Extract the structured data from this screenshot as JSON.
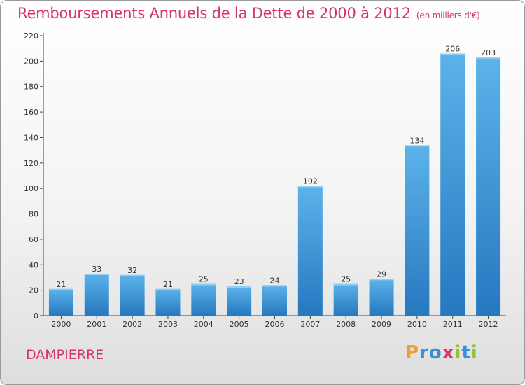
{
  "header": {
    "title": "Remboursements Annuels de la Dette de 2000 à 2012",
    "unit": "(en milliers d'€)"
  },
  "footer": {
    "town": "DAMPIERRE",
    "logo": [
      "P",
      "r",
      "o",
      "x",
      "i",
      "t",
      "i"
    ],
    "logo_colors": [
      "#f0a030",
      "#3a8fd8",
      "#3a8fd8",
      "#d83a6a",
      "#8cc63f",
      "#3a8fd8",
      "#8cc63f"
    ]
  },
  "chart_data": {
    "type": "bar",
    "title": "Remboursements Annuels de la Dette de 2000 à 2012",
    "xlabel": "",
    "ylabel": "",
    "categories": [
      "2000",
      "2001",
      "2002",
      "2003",
      "2004",
      "2005",
      "2006",
      "2007",
      "2008",
      "2009",
      "2010",
      "2011",
      "2012"
    ],
    "values": [
      21,
      33,
      32,
      21,
      25,
      23,
      24,
      102,
      25,
      29,
      134,
      206,
      203
    ],
    "ylim": [
      0,
      220
    ],
    "yticks": [
      0,
      20,
      40,
      60,
      80,
      100,
      120,
      140,
      160,
      180,
      200,
      220
    ],
    "grid": false,
    "bar_color": "#3d9ee0",
    "bar_color_dark": "#2678bf"
  }
}
